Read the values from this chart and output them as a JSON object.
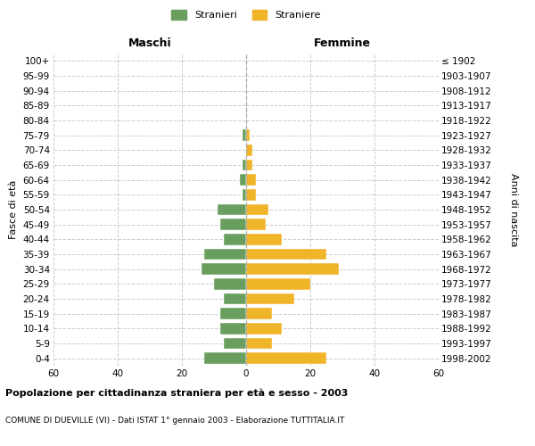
{
  "age_groups": [
    "0-4",
    "5-9",
    "10-14",
    "15-19",
    "20-24",
    "25-29",
    "30-34",
    "35-39",
    "40-44",
    "45-49",
    "50-54",
    "55-59",
    "60-64",
    "65-69",
    "70-74",
    "75-79",
    "80-84",
    "85-89",
    "90-94",
    "95-99",
    "100+"
  ],
  "birth_years": [
    "1998-2002",
    "1993-1997",
    "1988-1992",
    "1983-1987",
    "1978-1982",
    "1973-1977",
    "1968-1972",
    "1963-1967",
    "1958-1962",
    "1953-1957",
    "1948-1952",
    "1943-1947",
    "1938-1942",
    "1933-1937",
    "1928-1932",
    "1923-1927",
    "1918-1922",
    "1913-1917",
    "1908-1912",
    "1903-1907",
    "≤ 1902"
  ],
  "males": [
    13,
    7,
    8,
    8,
    7,
    10,
    14,
    13,
    7,
    8,
    9,
    1,
    2,
    1,
    0,
    1,
    0,
    0,
    0,
    0,
    0
  ],
  "females": [
    25,
    8,
    11,
    8,
    15,
    20,
    29,
    25,
    11,
    6,
    7,
    3,
    3,
    2,
    2,
    1,
    0,
    0,
    0,
    0,
    0
  ],
  "male_color": "#6a9e5e",
  "female_color": "#f0b429",
  "grid_color": "#cccccc",
  "xlim": 60,
  "title": "Popolazione per cittadinanza straniera per età e sesso - 2003",
  "subtitle": "COMUNE DI DUEVILLE (VI) - Dati ISTAT 1° gennaio 2003 - Elaborazione TUTTITALIA.IT",
  "xlabel_left": "Maschi",
  "xlabel_right": "Femmine",
  "ylabel_left": "Fasce di età",
  "ylabel_right": "Anni di nascita",
  "legend_male": "Stranieri",
  "legend_female": "Straniere"
}
